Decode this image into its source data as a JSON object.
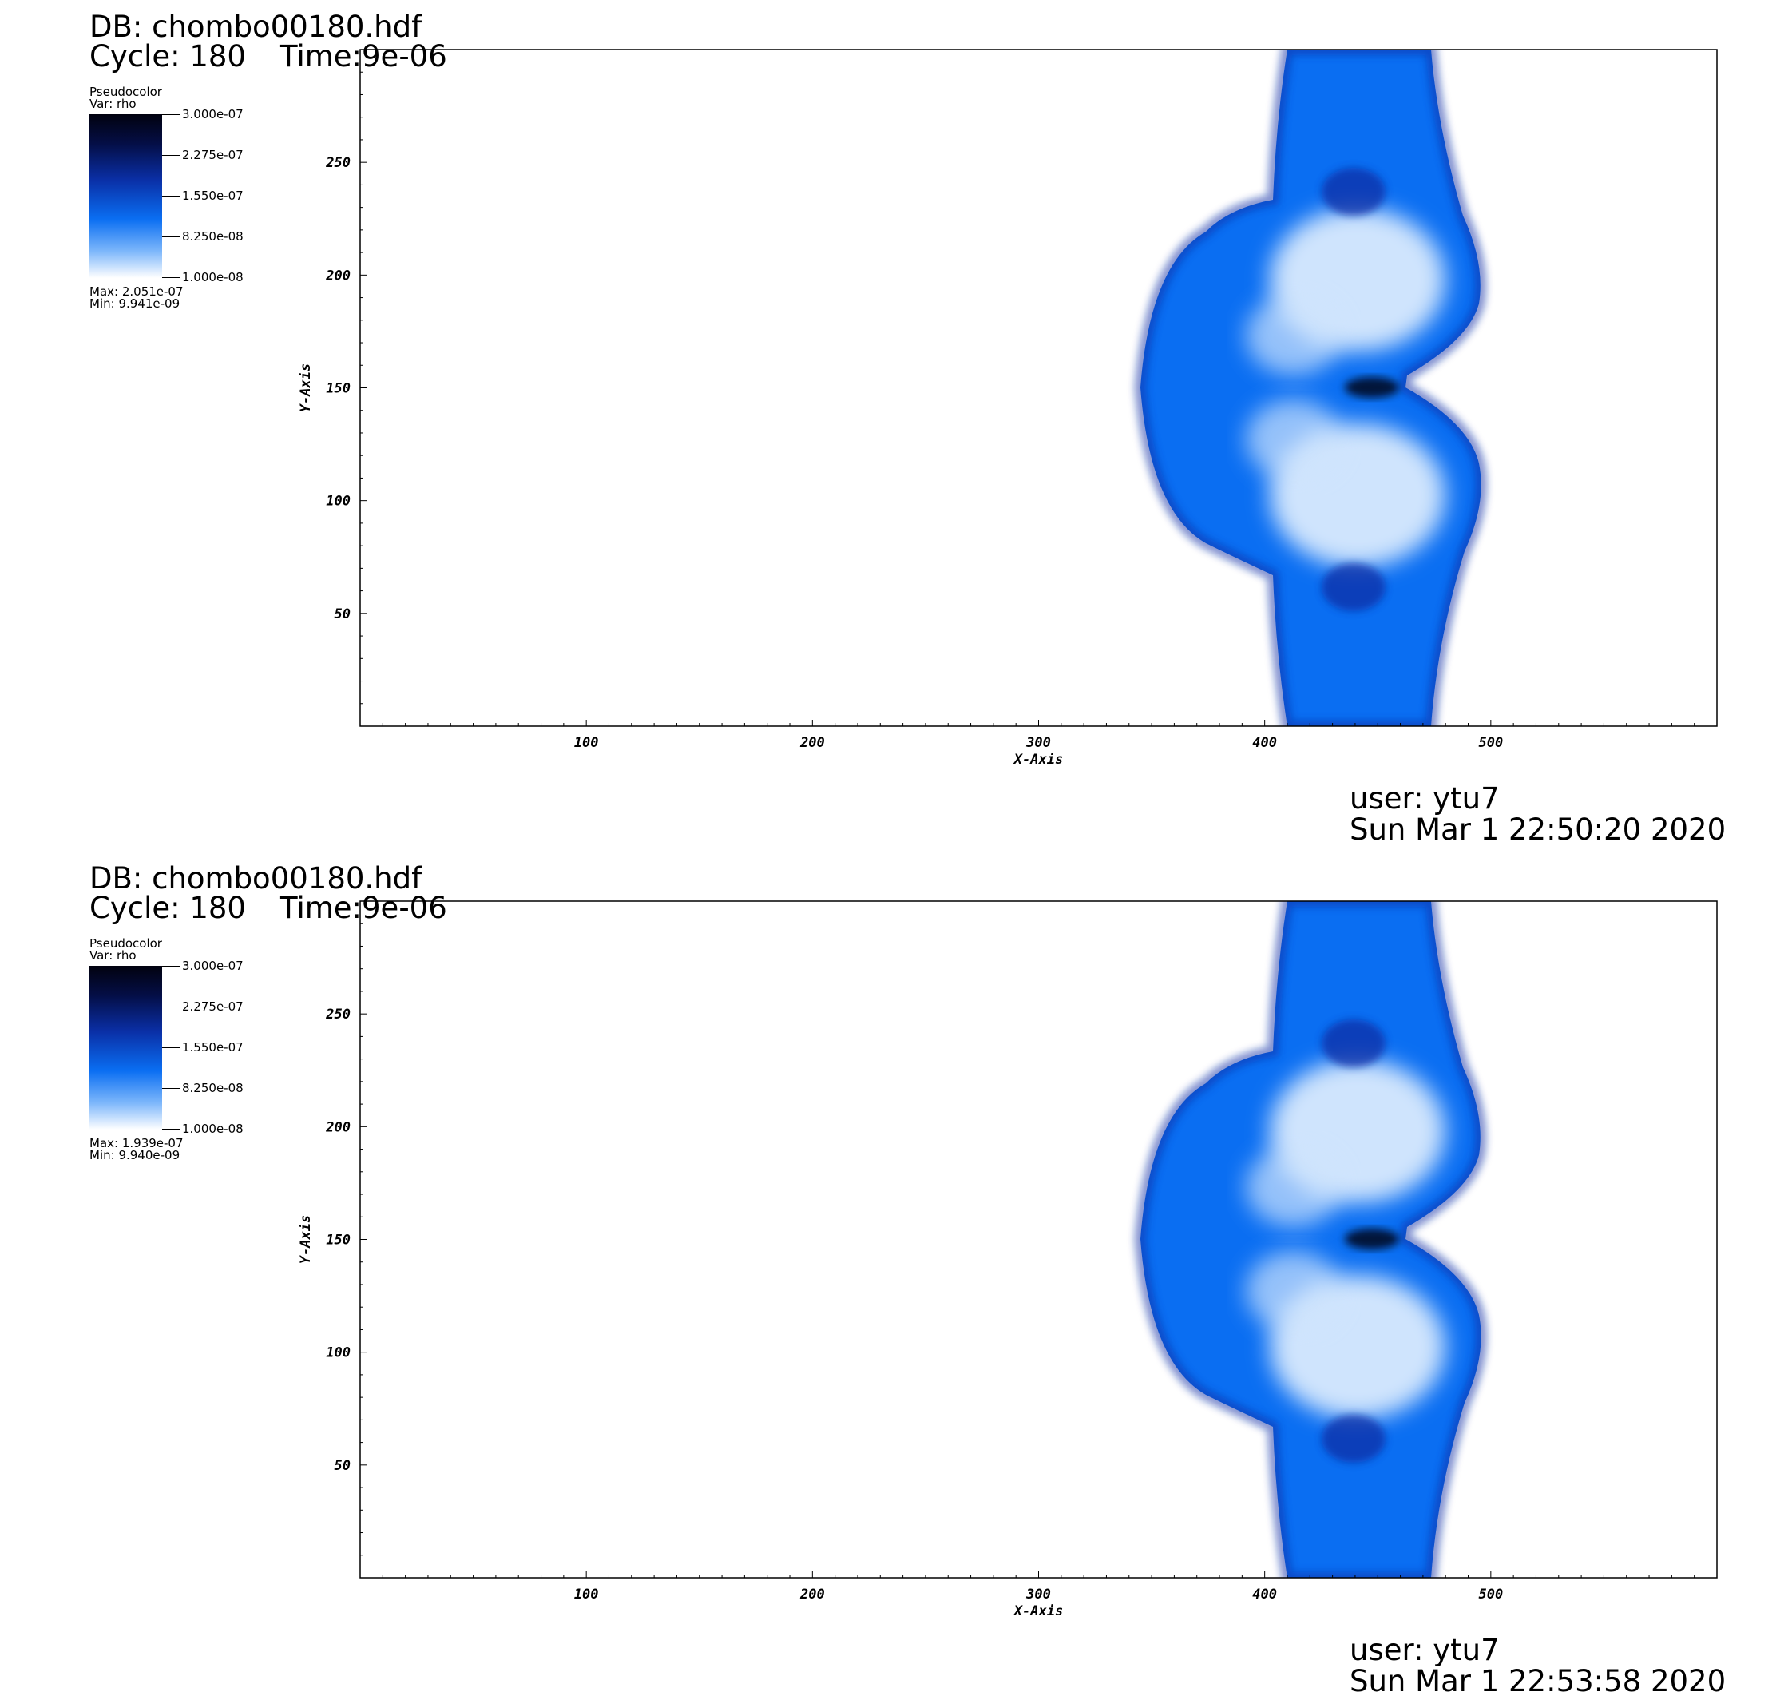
{
  "panels": [
    {
      "db": "DB: chombo00180.hdf",
      "cycle": "Cycle: 180",
      "time": "Time:9e-06",
      "legend": {
        "title": "Pseudocolor",
        "var": "Var: rho",
        "ticks": [
          "3.000e-07",
          "2.275e-07",
          "1.550e-07",
          "8.250e-08",
          "1.000e-08"
        ],
        "max": "Max:  2.051e-07",
        "min": "Min:  9.941e-09"
      },
      "user": "user: ytu7",
      "date": "Sun Mar  1 22:50:20 2020"
    },
    {
      "db": "DB: chombo00180.hdf",
      "cycle": "Cycle: 180",
      "time": "Time:9e-06",
      "legend": {
        "title": "Pseudocolor",
        "var": "Var: rho",
        "ticks": [
          "3.000e-07",
          "2.275e-07",
          "1.550e-07",
          "8.250e-08",
          "1.000e-08"
        ],
        "max": "Max:  1.939e-07",
        "min": "Min:  9.940e-09"
      },
      "user": "user: ytu7",
      "date": "Sun Mar  1 22:53:58 2020"
    }
  ],
  "chart_data": [
    {
      "type": "heatmap",
      "title": "",
      "xlabel": "X-Axis",
      "ylabel": "Y-Axis",
      "xlim": [
        0,
        600
      ],
      "ylim": [
        0,
        300
      ],
      "xticks": [
        100,
        200,
        300,
        400,
        500
      ],
      "yticks": [
        50,
        100,
        150,
        200,
        250
      ],
      "colormap_range": [
        1e-08,
        3e-07
      ],
      "grid": false,
      "colors": {
        "dark": "#02020f",
        "navy": "#0a2fa6",
        "blue": "#0a6ef2",
        "light": "#cfe4fd",
        "white": "#ffffff"
      }
    },
    {
      "type": "heatmap",
      "title": "",
      "xlabel": "X-Axis",
      "ylabel": "Y-Axis",
      "xlim": [
        0,
        600
      ],
      "ylim": [
        0,
        300
      ],
      "xticks": [
        100,
        200,
        300,
        400,
        500
      ],
      "yticks": [
        50,
        100,
        150,
        200,
        250
      ],
      "colormap_range": [
        1e-08,
        3e-07
      ],
      "grid": false,
      "colors": {
        "dark": "#02020f",
        "navy": "#0a2fa6",
        "blue": "#0a6ef2",
        "light": "#cfe4fd",
        "white": "#ffffff"
      }
    }
  ]
}
